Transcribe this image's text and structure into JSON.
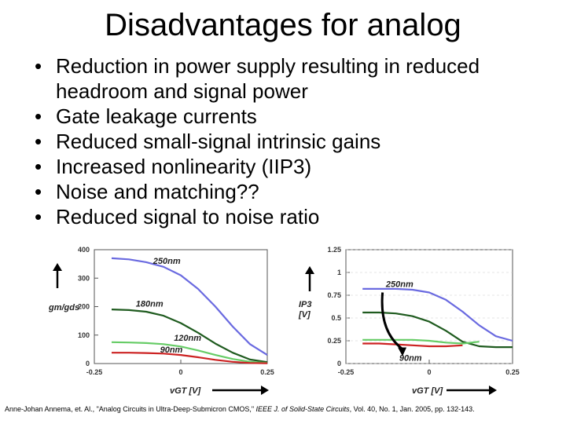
{
  "slide": {
    "title": "Disadvantages for analog",
    "bullet_symbol": "•",
    "bullets": [
      "Reduction in power supply resulting in reduced headroom and signal power",
      "Gate leakage currents",
      "Reduced small-signal intrinsic gains",
      "Increased nonlinearity (IIP3)",
      "Noise and matching??",
      "Reduced signal to noise ratio"
    ],
    "citation": {
      "authors": "Anne-Johan Annema, et. Al., \"Analog Circuits in Ultra-Deep-Submicron CMOS,\"",
      "journal": " IEEE J. of Solid-State Circuits",
      "details": ", Vol. 40, No. 1, Jan. 2005, pp. 132-143."
    }
  },
  "chart_data": [
    {
      "type": "line",
      "ylabel": "gm/gds",
      "xlabel": "vGT [V]",
      "xticks": [
        "-0.25",
        "0",
        "0.25"
      ],
      "yticks": [
        "0",
        "100",
        "200",
        "300",
        "400"
      ],
      "xlim": [
        -0.25,
        0.25
      ],
      "ylim": [
        0,
        400
      ],
      "series": [
        {
          "name": "250nm",
          "color": "#6a6ae0",
          "x": [
            -0.2,
            -0.15,
            -0.1,
            -0.05,
            0,
            0.05,
            0.1,
            0.15,
            0.2,
            0.25
          ],
          "y": [
            370,
            366,
            356,
            340,
            310,
            262,
            200,
            130,
            68,
            30
          ]
        },
        {
          "name": "180nm",
          "color": "#1f5b1f",
          "x": [
            -0.2,
            -0.15,
            -0.1,
            -0.05,
            0,
            0.05,
            0.1,
            0.15,
            0.2,
            0.25
          ],
          "y": [
            190,
            188,
            182,
            168,
            142,
            108,
            70,
            38,
            14,
            5
          ]
        },
        {
          "name": "120nm",
          "color": "#66cc66",
          "x": [
            -0.2,
            -0.15,
            -0.1,
            -0.05,
            0,
            0.05,
            0.1,
            0.15,
            0.2,
            0.25
          ],
          "y": [
            75,
            74,
            72,
            68,
            60,
            46,
            30,
            16,
            6,
            2
          ]
        },
        {
          "name": "90nm",
          "color": "#cc2222",
          "x": [
            -0.2,
            -0.15,
            -0.1,
            -0.05,
            0,
            0.05,
            0.1,
            0.15,
            0.2,
            0.25
          ],
          "y": [
            38,
            38,
            37,
            35,
            30,
            22,
            13,
            6,
            2,
            1
          ]
        }
      ],
      "labels": [
        {
          "text": "250nm",
          "series": 0,
          "x": -0.08,
          "y": 350
        },
        {
          "text": "180nm",
          "series": 1,
          "x": -0.13,
          "y": 200
        },
        {
          "text": "120nm",
          "series": 2,
          "x": -0.02,
          "y": 80
        },
        {
          "text": "90nm",
          "series": 3,
          "x": -0.06,
          "y": 38
        }
      ]
    },
    {
      "type": "line",
      "ylabel": "IP3 [V]",
      "xlabel": "vGT [V]",
      "xticks": [
        "-0.25",
        "0",
        "0.25"
      ],
      "yticks": [
        "0",
        "0.25",
        "0.5",
        "0.75",
        "1",
        "1.25"
      ],
      "xlim": [
        -0.25,
        0.25
      ],
      "ylim": [
        0,
        1.25
      ],
      "series": [
        {
          "name": "250nm",
          "color": "#6a6ae0",
          "x": [
            -0.2,
            -0.15,
            -0.1,
            -0.05,
            0,
            0.05,
            0.1,
            0.15,
            0.2,
            0.25
          ],
          "y": [
            0.82,
            0.82,
            0.82,
            0.81,
            0.78,
            0.7,
            0.57,
            0.42,
            0.3,
            0.25
          ]
        },
        {
          "name": "180nm",
          "color": "#1f5b1f",
          "x": [
            -0.2,
            -0.15,
            -0.1,
            -0.05,
            0,
            0.05,
            0.1,
            0.15,
            0.2,
            0.25
          ],
          "y": [
            0.56,
            0.56,
            0.55,
            0.52,
            0.46,
            0.36,
            0.24,
            0.19,
            0.18,
            0.18
          ]
        },
        {
          "name": "120nm",
          "color": "#66cc66",
          "x": [
            -0.2,
            -0.15,
            -0.1,
            -0.05,
            0,
            0.05,
            0.1,
            0.15
          ],
          "y": [
            0.26,
            0.26,
            0.26,
            0.26,
            0.25,
            0.23,
            0.22,
            0.24
          ]
        },
        {
          "name": "90nm",
          "color": "#cc2222",
          "x": [
            -0.2,
            -0.15,
            -0.1,
            -0.05,
            0,
            0.05,
            0.1
          ],
          "y": [
            0.22,
            0.22,
            0.21,
            0.2,
            0.19,
            0.19,
            0.2
          ]
        }
      ],
      "labels": [
        {
          "text": "250nm",
          "series": 0,
          "x": -0.13,
          "y": 0.84
        },
        {
          "text": "90nm",
          "series": 3,
          "x": -0.09,
          "y": 0.03
        }
      ]
    }
  ]
}
